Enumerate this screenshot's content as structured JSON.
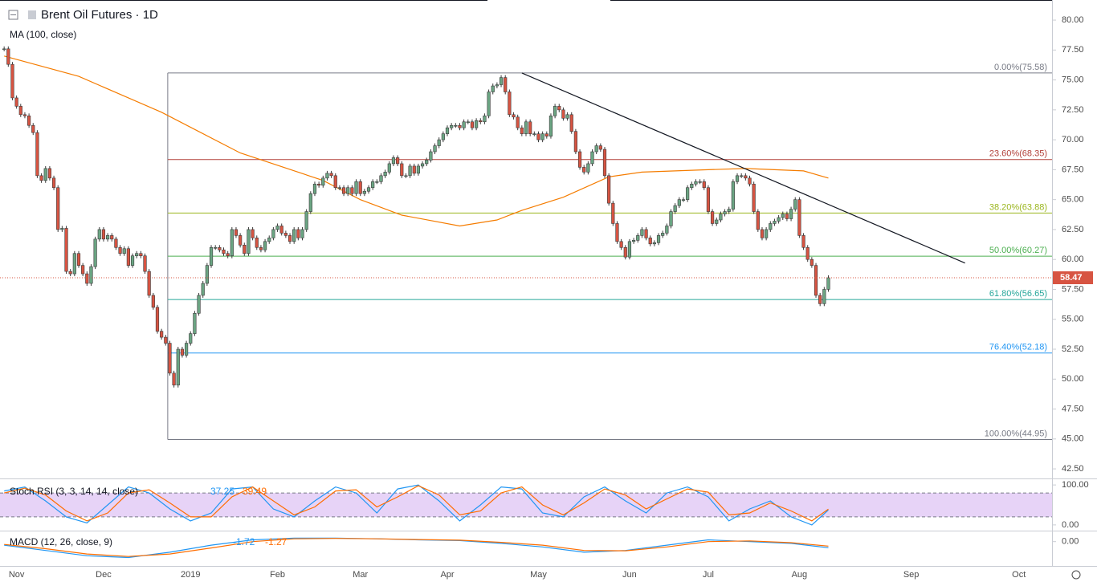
{
  "chart_data": {
    "type": "candlestick",
    "title": "Brent Oil Futures · 1D",
    "xlim": [
      -1,
      253
    ],
    "ylim": [
      41.7,
      81.68
    ],
    "xticks": [
      {
        "value": 3,
        "label": "Nov"
      },
      {
        "value": 24,
        "label": "Dec"
      },
      {
        "value": 45,
        "label": "2019"
      },
      {
        "value": 66,
        "label": "Feb"
      },
      {
        "value": 86,
        "label": "Mar"
      },
      {
        "value": 107,
        "label": "Apr"
      },
      {
        "value": 129,
        "label": "May"
      },
      {
        "value": 151,
        "label": "Jun"
      },
      {
        "value": 170,
        "label": "Jul"
      },
      {
        "value": 192,
        "label": "Aug"
      },
      {
        "value": 219,
        "label": "Sep"
      },
      {
        "value": 245,
        "label": "Oct"
      }
    ],
    "yticks": [
      {
        "value": 42.5,
        "label": "42.50"
      },
      {
        "value": 45,
        "label": "45.00"
      },
      {
        "value": 47.5,
        "label": "47.50"
      },
      {
        "value": 50,
        "label": "50.00"
      },
      {
        "value": 52.5,
        "label": "52.50"
      },
      {
        "value": 55,
        "label": "55.00"
      },
      {
        "value": 57.5,
        "label": "57.50"
      },
      {
        "value": 60,
        "label": "60.00"
      },
      {
        "value": 62.5,
        "label": "62.50"
      },
      {
        "value": 65,
        "label": "65.00"
      },
      {
        "value": 67.5,
        "label": "67.50"
      },
      {
        "value": 70,
        "label": "70.00"
      },
      {
        "value": 72.5,
        "label": "72.50"
      },
      {
        "value": 75,
        "label": "75.00"
      },
      {
        "value": 77.5,
        "label": "77.50"
      },
      {
        "value": 80,
        "label": "80.00"
      }
    ],
    "up_color": "#6ba583",
    "down_color": "#d75442",
    "last_price_color": "#d75442",
    "series": [
      {
        "x": [
          0,
          1,
          2,
          3,
          4,
          5,
          6,
          7,
          8,
          9,
          10,
          11,
          12,
          13,
          14,
          15,
          16,
          17,
          18,
          19,
          20,
          21,
          22,
          23,
          24,
          25,
          26,
          27,
          28,
          29,
          30,
          31,
          32,
          33,
          34,
          35,
          36,
          37,
          38,
          39,
          40,
          41,
          42,
          43,
          44,
          45,
          46,
          47,
          48,
          49,
          50,
          51,
          52,
          53,
          54,
          55,
          56,
          57,
          58,
          59,
          60,
          61,
          62,
          63,
          64,
          65,
          66,
          67,
          68,
          69,
          70,
          71,
          72,
          73,
          74,
          75,
          76,
          77,
          78,
          79,
          80,
          81,
          82,
          83,
          84,
          85,
          86,
          87,
          88,
          89,
          90,
          91,
          92,
          93,
          94,
          95,
          96,
          97,
          98,
          99,
          100,
          101,
          102,
          103,
          104,
          105,
          106,
          107,
          108,
          109,
          110,
          111,
          112,
          113,
          114,
          115,
          116,
          117,
          118,
          119,
          120,
          121,
          122,
          123,
          124,
          125,
          126,
          127,
          128,
          129,
          130,
          131,
          132,
          133,
          134,
          135,
          136,
          137,
          138,
          139,
          140,
          141,
          142,
          143,
          144,
          145,
          146,
          147,
          148,
          149,
          150,
          151,
          152,
          153,
          154,
          155,
          156,
          157,
          158,
          159,
          160,
          161,
          162,
          163,
          164,
          165,
          166,
          167,
          168,
          169,
          170,
          171,
          172,
          173,
          174,
          175,
          176,
          177,
          178,
          179,
          180,
          181,
          182,
          183,
          184,
          185,
          186,
          187,
          188,
          189,
          190,
          191,
          192,
          193,
          194,
          195,
          196,
          197,
          198,
          199
        ],
        "values": [
          77.6,
          76.3,
          73.5,
          72.8,
          72.1,
          72.0,
          71.2,
          70.6,
          67.0,
          66.6,
          67.6,
          66.8,
          66.0,
          62.5,
          62.6,
          59.0,
          58.8,
          60.5,
          59.5,
          58.8,
          58.0,
          59.4,
          61.7,
          62.5,
          61.7,
          62.0,
          61.7,
          61.0,
          60.5,
          60.9,
          59.5,
          60.3,
          60.5,
          60.3,
          59.0,
          57.0,
          56.0,
          54.0,
          53.5,
          53.0,
          50.5,
          49.5,
          52.5,
          52.0,
          53.0,
          53.8,
          55.5,
          57.0,
          58.0,
          59.5,
          61.0,
          61.0,
          60.8,
          60.5,
          60.3,
          62.5,
          62.0,
          61.2,
          60.5,
          62.5,
          61.8,
          61.0,
          60.8,
          61.5,
          61.8,
          62.5,
          62.8,
          62.2,
          62.0,
          61.5,
          62.5,
          61.8,
          62.5,
          64.0,
          65.5,
          66.3,
          66.2,
          66.8,
          67.2,
          67.0,
          66.0,
          66.0,
          65.5,
          66.0,
          65.5,
          66.5,
          65.5,
          65.7,
          66.0,
          66.5,
          66.5,
          67.0,
          67.3,
          68.0,
          68.5,
          68.0,
          67.0,
          67.0,
          67.8,
          67.2,
          67.8,
          68.0,
          68.3,
          69.0,
          69.5,
          70.0,
          70.5,
          71.0,
          71.2,
          71.2,
          71.0,
          71.5,
          71.5,
          71.0,
          71.6,
          71.5,
          72.0,
          74.0,
          74.5,
          74.6,
          75.2,
          74.0,
          72.1,
          71.9,
          71.0,
          70.5,
          71.5,
          70.5,
          70.5,
          70.0,
          70.5,
          70.3,
          72.0,
          72.8,
          72.5,
          71.8,
          72.1,
          70.7,
          69.0,
          67.7,
          67.3,
          68.0,
          69.0,
          69.5,
          69.2,
          67.0,
          64.7,
          63.0,
          61.5,
          61.0,
          60.2,
          61.5,
          61.6,
          62.0,
          62.5,
          61.8,
          61.3,
          61.4,
          62.0,
          62.2,
          62.8,
          64.0,
          64.5,
          65.0,
          65.0,
          66.0,
          66.3,
          66.5,
          66.5,
          66.0,
          64.0,
          63.0,
          63.3,
          63.8,
          64.0,
          64.2,
          66.5,
          67.0,
          67.0,
          66.8,
          66.3,
          64.0,
          62.5,
          61.8,
          62.5,
          63.0,
          63.2,
          63.5,
          63.8,
          63.4,
          64.2,
          65.0,
          62.0,
          61.0,
          60.0,
          59.5,
          57.0,
          56.3,
          57.5,
          58.47
        ]
      },
      {
        "name": "MA (100, close)",
        "color": "#f57c00",
        "x": [
          0,
          18,
          38,
          57,
          77,
          86,
          96,
          110,
          119,
          125,
          135,
          146,
          154,
          170,
          179,
          193,
          199
        ],
        "values": [
          77.0,
          75.3,
          72.3,
          68.9,
          66.6,
          65.0,
          63.7,
          62.8,
          63.3,
          64.1,
          65.2,
          66.9,
          67.3,
          67.5,
          67.6,
          67.4,
          66.8
        ]
      }
    ],
    "trendline": {
      "color": "#131722",
      "x": [
        125,
        232
      ],
      "values": [
        75.58,
        59.7
      ]
    },
    "fib_start": 39.5,
    "fib_levels": [
      {
        "value": 75.58,
        "label": "0.00%(75.58)",
        "color": "#787b86"
      },
      {
        "value": 68.35,
        "label": "23.60%(68.35)",
        "color": "#b2413a"
      },
      {
        "value": 63.88,
        "label": "38.20%(63.88)",
        "color": "#9bb61f"
      },
      {
        "value": 60.27,
        "label": "50.00%(60.27)",
        "color": "#4caf50"
      },
      {
        "value": 56.65,
        "label": "61.80%(56.65)",
        "color": "#26a69a"
      },
      {
        "value": 52.18,
        "label": "76.40%(52.18)",
        "color": "#2196f3"
      },
      {
        "value": 44.95,
        "label": "100.00%(44.95)",
        "color": "#787b86"
      }
    ],
    "stoch": {
      "title": "Stoch RSI (3, 3, 14, 14, close)",
      "ylim": [
        -14.3,
        114.3
      ],
      "yticks": [
        {
          "value": 100,
          "label": "100.00"
        },
        {
          "value": 0,
          "label": "0.00"
        }
      ],
      "bands": [
        20,
        80
      ],
      "band_color": "#e1c8f5",
      "series": [
        {
          "color": "#2196f3",
          "x": [
            0,
            5,
            10,
            15,
            20,
            25,
            30,
            35,
            40,
            45,
            50,
            55,
            60,
            65,
            70,
            75,
            80,
            85,
            90,
            95,
            100,
            105,
            110,
            115,
            120,
            125,
            130,
            135,
            140,
            145,
            150,
            155,
            160,
            165,
            170,
            175,
            180,
            185,
            190,
            195,
            199
          ],
          "values": [
            85,
            95,
            60,
            20,
            5,
            50,
            95,
            80,
            40,
            10,
            30,
            90,
            95,
            40,
            20,
            60,
            95,
            80,
            30,
            90,
            100,
            60,
            10,
            50,
            95,
            90,
            30,
            20,
            70,
            95,
            60,
            30,
            80,
            95,
            70,
            10,
            40,
            60,
            20,
            0,
            37.25
          ]
        },
        {
          "color": "#ff6d00",
          "x": [
            0,
            5,
            10,
            15,
            20,
            25,
            30,
            35,
            40,
            45,
            50,
            55,
            60,
            65,
            70,
            75,
            80,
            85,
            90,
            95,
            100,
            105,
            110,
            115,
            120,
            125,
            130,
            135,
            140,
            145,
            150,
            155,
            160,
            165,
            170,
            175,
            180,
            185,
            190,
            195,
            199
          ],
          "values": [
            80,
            92,
            75,
            35,
            10,
            30,
            80,
            88,
            55,
            20,
            20,
            70,
            95,
            60,
            25,
            45,
            85,
            88,
            45,
            70,
            98,
            75,
            25,
            35,
            80,
            95,
            50,
            25,
            55,
            90,
            75,
            40,
            65,
            90,
            82,
            25,
            30,
            55,
            35,
            10,
            39.49
          ]
        }
      ]
    },
    "macd": {
      "title": "MACD (12, 26, close, 9)",
      "ylim": [
        -6.89,
        2.89
      ],
      "yticks": [
        {
          "value": 0,
          "label": "0.00"
        }
      ],
      "series": [
        {
          "color": "#2196f3",
          "x": [
            0,
            10,
            20,
            30,
            40,
            50,
            60,
            70,
            80,
            90,
            100,
            110,
            120,
            130,
            140,
            150,
            160,
            170,
            180,
            190,
            199
          ],
          "values": [
            -1,
            -2.5,
            -4,
            -4.5,
            -3,
            -1,
            0.5,
            1,
            1,
            0.8,
            0.5,
            0.3,
            -0.5,
            -1.5,
            -3,
            -2.5,
            -1,
            0.5,
            0,
            -0.5,
            -1.72
          ]
        },
        {
          "color": "#ff6d00",
          "x": [
            0,
            10,
            20,
            30,
            40,
            50,
            60,
            70,
            80,
            90,
            100,
            110,
            120,
            130,
            140,
            150,
            160,
            170,
            180,
            190,
            199
          ],
          "values": [
            -0.8,
            -2,
            -3.5,
            -4.2,
            -3.5,
            -1.8,
            0,
            0.8,
            0.9,
            0.8,
            0.6,
            0.4,
            -0.2,
            -1,
            -2.5,
            -2.6,
            -1.5,
            0,
            0.2,
            -0.3,
            -1.27
          ]
        }
      ]
    }
  }
}
